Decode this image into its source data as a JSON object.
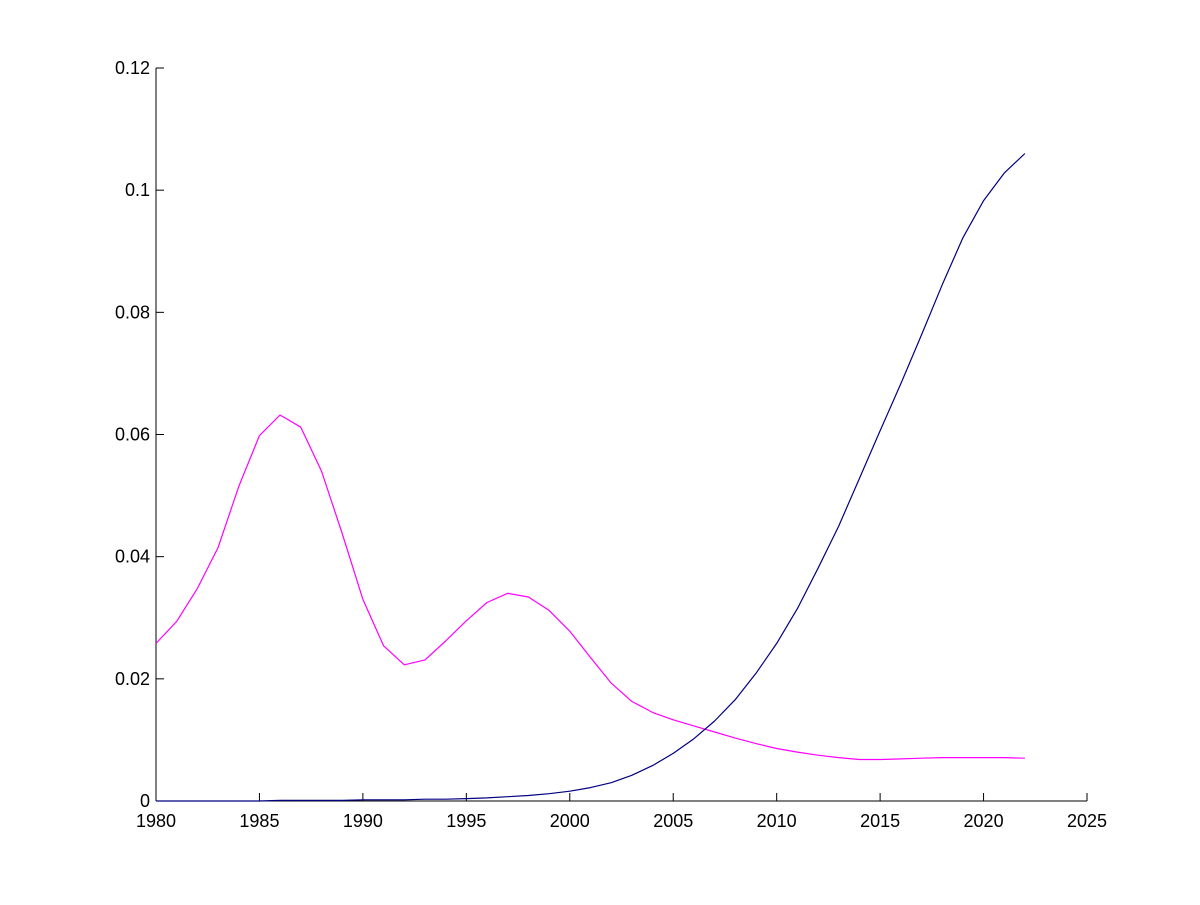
{
  "chart_data": {
    "type": "line",
    "title": "",
    "xlabel": "",
    "ylabel": "",
    "xlim": [
      1980,
      2025
    ],
    "ylim": [
      0,
      0.12
    ],
    "xticks": [
      1980,
      1985,
      1990,
      1995,
      2000,
      2005,
      2010,
      2015,
      2020,
      2025
    ],
    "yticks": [
      0,
      0.02,
      0.04,
      0.06,
      0.08,
      0.1,
      0.12
    ],
    "xtick_labels": [
      "1980",
      "1985",
      "1990",
      "1995",
      "2000",
      "2005",
      "2010",
      "2015",
      "2020",
      "2025"
    ],
    "ytick_labels": [
      "0",
      "0.02",
      "0.04",
      "0.06",
      "0.08",
      "0.1",
      "0.12"
    ],
    "grid": false,
    "legend": "none",
    "series": [
      {
        "color": "#ff00ff",
        "x": [
          1980,
          1981,
          1982,
          1983,
          1984,
          1985,
          1986,
          1987,
          1988,
          1989,
          1990,
          1991,
          1992,
          1993,
          1994,
          1995,
          1996,
          1997,
          1998,
          1999,
          2000,
          2001,
          2002,
          2003,
          2004,
          2005,
          2006,
          2007,
          2008,
          2009,
          2010,
          2011,
          2012,
          2013,
          2014,
          2015,
          2016,
          2017,
          2018,
          2019,
          2020,
          2021,
          2022
        ],
        "y": [
          0.0258,
          0.0294,
          0.0348,
          0.0415,
          0.0515,
          0.0598,
          0.0632,
          0.0612,
          0.054,
          0.0438,
          0.033,
          0.0254,
          0.0223,
          0.0231,
          0.0262,
          0.0295,
          0.0325,
          0.034,
          0.0334,
          0.0312,
          0.0278,
          0.0235,
          0.0193,
          0.0163,
          0.0145,
          0.0133,
          0.0123,
          0.0113,
          0.0103,
          0.0094,
          0.0086,
          0.008,
          0.0075,
          0.0071,
          0.0068,
          0.0068,
          0.0069,
          0.007,
          0.0071,
          0.0071,
          0.0071,
          0.0071,
          0.007
        ]
      },
      {
        "color": "#000080",
        "x": [
          1980,
          1981,
          1982,
          1983,
          1984,
          1985,
          1986,
          1987,
          1988,
          1989,
          1990,
          1991,
          1992,
          1993,
          1994,
          1995,
          1996,
          1997,
          1998,
          1999,
          2000,
          2001,
          2002,
          2003,
          2004,
          2005,
          2006,
          2007,
          2008,
          2009,
          2010,
          2011,
          2012,
          2013,
          2014,
          2015,
          2016,
          2017,
          2018,
          2019,
          2020,
          2021,
          2022
        ],
        "y": [
          0.0,
          0.0,
          0.0,
          0.0,
          0.0,
          0.0,
          0.0001,
          0.0001,
          0.0001,
          0.0001,
          0.0002,
          0.0002,
          0.0002,
          0.0003,
          0.0003,
          0.0004,
          0.0005,
          0.0007,
          0.0009,
          0.0012,
          0.0016,
          0.0022,
          0.003,
          0.0042,
          0.0058,
          0.0078,
          0.0102,
          0.0131,
          0.0166,
          0.0209,
          0.0258,
          0.0315,
          0.0381,
          0.045,
          0.0528,
          0.0606,
          0.0683,
          0.0763,
          0.0845,
          0.0922,
          0.0983,
          0.1028,
          0.106
        ]
      }
    ]
  }
}
